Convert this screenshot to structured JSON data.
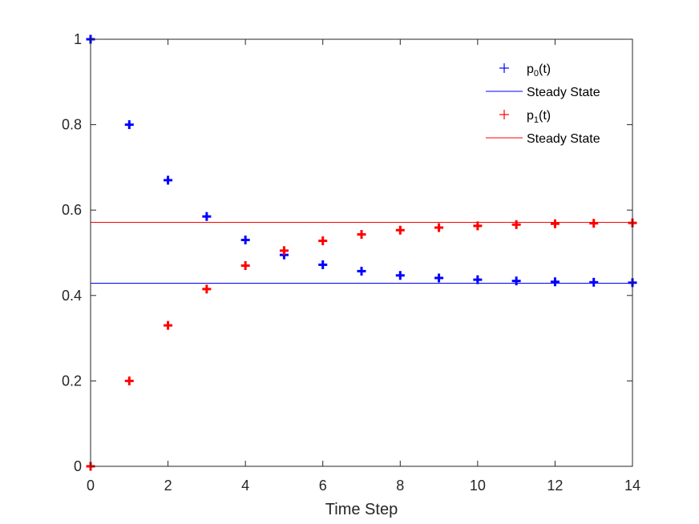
{
  "chart_data": {
    "type": "scatter",
    "title": "",
    "xlabel": "Time Step",
    "ylabel": "",
    "xlim": [
      0,
      14
    ],
    "ylim": [
      0,
      1
    ],
    "xticks": [
      0,
      2,
      4,
      6,
      8,
      10,
      12,
      14
    ],
    "yticks": [
      0,
      0.2,
      0.4,
      0.6,
      0.8,
      1
    ],
    "ytick_labels": [
      "0",
      "0.2",
      "0.4",
      "0.6",
      "0.8",
      "1"
    ],
    "grid": false,
    "legend_position": "top-right",
    "series": [
      {
        "name": "p0(t)",
        "legend_base": "p",
        "legend_sub": "0",
        "legend_tail": "(t)",
        "marker": "plus",
        "color": "#0000ff",
        "x": [
          0,
          1,
          2,
          3,
          4,
          5,
          6,
          7,
          8,
          9,
          10,
          11,
          12,
          13,
          14
        ],
        "y": [
          1.0,
          0.8,
          0.67,
          0.585,
          0.53,
          0.495,
          0.472,
          0.457,
          0.447,
          0.441,
          0.437,
          0.434,
          0.432,
          0.431,
          0.43
        ]
      },
      {
        "name": "Steady State",
        "type": "hline",
        "color": "#0000ff",
        "y": 0.4286
      },
      {
        "name": "p1(t)",
        "legend_base": "p",
        "legend_sub": "1",
        "legend_tail": "(t)",
        "marker": "plus",
        "color": "#ff0000",
        "x": [
          0,
          1,
          2,
          3,
          4,
          5,
          6,
          7,
          8,
          9,
          10,
          11,
          12,
          13,
          14
        ],
        "y": [
          0.0,
          0.2,
          0.33,
          0.415,
          0.47,
          0.505,
          0.528,
          0.543,
          0.553,
          0.559,
          0.563,
          0.566,
          0.568,
          0.569,
          0.57
        ]
      },
      {
        "name": "Steady State",
        "type": "hline",
        "color": "#ff0000",
        "y": 0.5714
      }
    ]
  }
}
